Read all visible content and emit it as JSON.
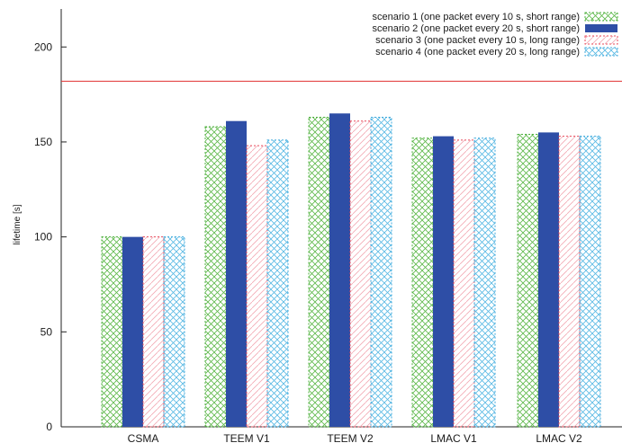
{
  "chart_data": {
    "type": "bar",
    "categories": [
      "CSMA",
      "TEEM V1",
      "TEEM V2",
      "LMAC V1",
      "LMAC V2"
    ],
    "series": [
      {
        "name": "scenario 1 (one packet every 10 s, short range)",
        "values": [
          100,
          158,
          163,
          152,
          154
        ],
        "color": "#4caf3c",
        "pattern": "crosshatch"
      },
      {
        "name": "scenario 2 (one packet every 20 s, short range)",
        "values": [
          100,
          161,
          165,
          153,
          155
        ],
        "color": "#2e4ea6",
        "pattern": "solid"
      },
      {
        "name": "scenario 3 (one packet every 10 s,  long range)",
        "values": [
          100,
          148,
          161,
          151,
          153
        ],
        "color": "#e8495a",
        "pattern": "diagonal"
      },
      {
        "name": "scenario 4 (one packet every 20 s,  long range)",
        "values": [
          100,
          151,
          163,
          152,
          153
        ],
        "color": "#3fa9dc",
        "pattern": "crosshatch"
      }
    ],
    "reference_line": {
      "value": 182,
      "color": "#e03030"
    },
    "ylabel": "lifetime [s]",
    "xlabel": "",
    "ylim": [
      0,
      220
    ],
    "yticks": [
      0,
      50,
      100,
      150,
      200
    ],
    "legend_position": "top-right",
    "grid": false
  }
}
